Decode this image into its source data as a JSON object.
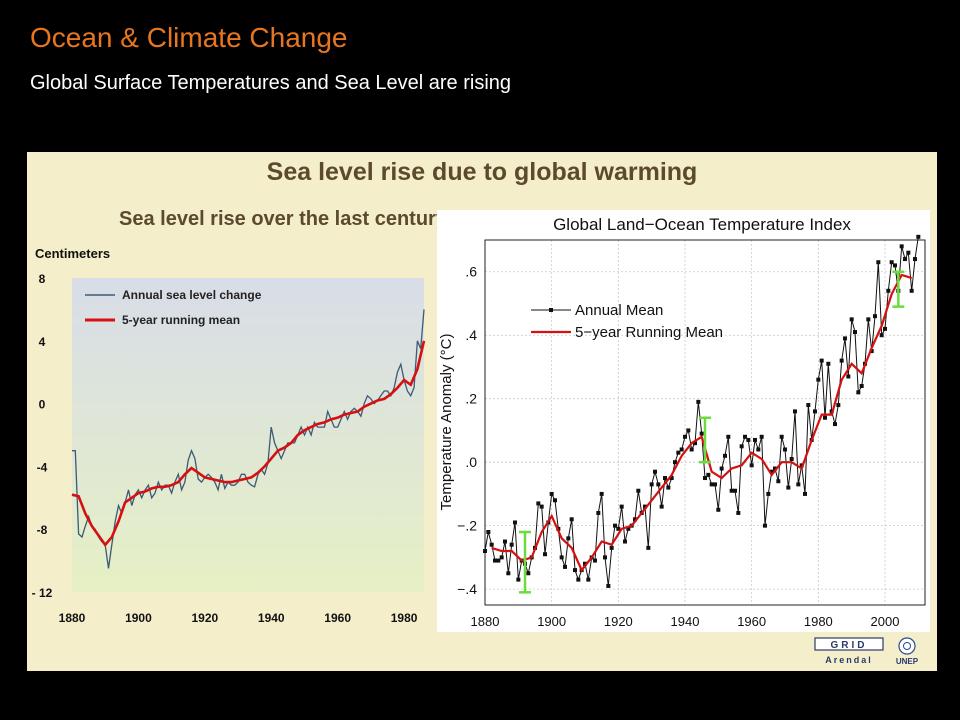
{
  "slide": {
    "title": "Ocean & Climate Change",
    "subtitle": "Global Surface Temperatures and Sea Level are rising"
  },
  "figure": {
    "title": "Sea level rise due to global warming",
    "logos": [
      "GRID Arendal",
      "UNEP"
    ]
  },
  "colors": {
    "slide_title": "#e8761e",
    "figure_bg": "#f5eecb",
    "sea_annual": "#3b5a78",
    "running_mean": "#d41010",
    "temp_annual": "#111111",
    "highlight_bars": "#6cdc3c"
  },
  "chart_data": [
    {
      "type": "line",
      "title": "Sea level rise over the last century",
      "ylabel": "Centimeters",
      "xlabel": "",
      "x_ticks": [
        1880,
        1900,
        1920,
        1940,
        1960,
        1980
      ],
      "y_ticks": [
        8,
        4,
        0,
        -4,
        -8,
        -12
      ],
      "y_tick_labels": [
        "8",
        "4",
        "0",
        "-4",
        "-8",
        "- 12"
      ],
      "xlim": [
        1880,
        1986
      ],
      "ylim": [
        -12,
        8
      ],
      "grid": false,
      "legend": "top-left",
      "series": [
        {
          "name": "Annual sea level change",
          "x": [
            1880,
            1881,
            1882,
            1883,
            1884,
            1885,
            1886,
            1887,
            1888,
            1889,
            1890,
            1891,
            1892,
            1893,
            1894,
            1895,
            1896,
            1897,
            1898,
            1899,
            1900,
            1901,
            1902,
            1903,
            1904,
            1905,
            1906,
            1907,
            1908,
            1909,
            1910,
            1911,
            1912,
            1913,
            1914,
            1915,
            1916,
            1917,
            1918,
            1919,
            1920,
            1921,
            1922,
            1923,
            1924,
            1925,
            1926,
            1927,
            1928,
            1929,
            1930,
            1931,
            1932,
            1933,
            1934,
            1935,
            1936,
            1937,
            1938,
            1939,
            1940,
            1941,
            1942,
            1943,
            1944,
            1945,
            1946,
            1947,
            1948,
            1949,
            1950,
            1951,
            1952,
            1953,
            1954,
            1955,
            1956,
            1957,
            1958,
            1959,
            1960,
            1961,
            1962,
            1963,
            1964,
            1965,
            1966,
            1967,
            1968,
            1969,
            1970,
            1971,
            1972,
            1973,
            1974,
            1975,
            1976,
            1977,
            1978,
            1979,
            1980,
            1981,
            1982,
            1983,
            1984,
            1985,
            1986
          ],
          "values": [
            -3,
            -3,
            -8.3,
            -8.5,
            -7.8,
            -7.2,
            -7.8,
            -8,
            -8.5,
            -8.8,
            -9,
            -10.5,
            -9,
            -7.5,
            -6.5,
            -7,
            -6.3,
            -5.5,
            -6.5,
            -5.8,
            -5.5,
            -6,
            -5.5,
            -5.2,
            -6,
            -5.7,
            -5,
            -5.5,
            -5.2,
            -5.2,
            -5.7,
            -5,
            -4.5,
            -5.5,
            -5,
            -3.6,
            -3,
            -3.5,
            -4.8,
            -5,
            -4.7,
            -4.5,
            -4.7,
            -5,
            -5.5,
            -4.5,
            -5.4,
            -5,
            -5.2,
            -5.2,
            -5,
            -4.5,
            -4.5,
            -5,
            -5.2,
            -5.3,
            -4.5,
            -4.2,
            -4.5,
            -3.8,
            -1.5,
            -2.5,
            -3,
            -3.5,
            -3,
            -2.5,
            -2.5,
            -2.5,
            -2,
            -1.5,
            -2,
            -1.5,
            -2,
            -1.2,
            -1.5,
            -1.5,
            -1.5,
            -0.5,
            -1,
            -1.5,
            -1.5,
            -1,
            -0.5,
            -1,
            -0.5,
            -0.3,
            -0.5,
            -0.8,
            0,
            0.5,
            0.3,
            0,
            0.2,
            0.5,
            0.8,
            0.8,
            0.5,
            1,
            2,
            2.5,
            1.5,
            0.8,
            0.5,
            1,
            4,
            3.5,
            6
          ]
        },
        {
          "name": "5-year running mean",
          "x": [
            1880,
            1882,
            1884,
            1886,
            1888,
            1890,
            1892,
            1894,
            1896,
            1898,
            1900,
            1902,
            1904,
            1906,
            1908,
            1910,
            1912,
            1914,
            1916,
            1918,
            1920,
            1922,
            1924,
            1926,
            1928,
            1930,
            1932,
            1934,
            1936,
            1938,
            1940,
            1942,
            1944,
            1946,
            1948,
            1950,
            1952,
            1954,
            1956,
            1958,
            1960,
            1962,
            1964,
            1966,
            1968,
            1970,
            1972,
            1974,
            1976,
            1978,
            1980,
            1982,
            1984,
            1986
          ],
          "values": [
            -5.8,
            -5.9,
            -7,
            -7.8,
            -8.4,
            -9,
            -8.5,
            -7.5,
            -6.3,
            -6,
            -5.7,
            -5.6,
            -5.4,
            -5.3,
            -5.3,
            -5.2,
            -5,
            -4.5,
            -4.1,
            -4.4,
            -4.7,
            -4.8,
            -4.9,
            -5,
            -5,
            -4.9,
            -4.8,
            -4.7,
            -4.4,
            -4,
            -3.5,
            -3,
            -2.8,
            -2.5,
            -2,
            -1.7,
            -1.5,
            -1.3,
            -1.2,
            -1,
            -0.9,
            -0.7,
            -0.6,
            -0.5,
            -0.2,
            0,
            0.2,
            0.3,
            0.6,
            1,
            1.5,
            1.2,
            2.2,
            4
          ]
        }
      ]
    },
    {
      "type": "line",
      "title": "Global Land−Ocean Temperature Index",
      "ylabel": "Temperature Anomaly (°C)",
      "xlabel": "",
      "x_ticks": [
        1880,
        1900,
        1920,
        1940,
        1960,
        1980,
        2000
      ],
      "y_ticks": [
        0.6,
        0.4,
        0.2,
        0.0,
        -0.2,
        -0.4
      ],
      "y_tick_labels": [
        ".6",
        ".4",
        ".2",
        ".0",
        "−.2",
        "−.4"
      ],
      "xlim": [
        1880,
        2012
      ],
      "ylim": [
        -0.45,
        0.7
      ],
      "grid": true,
      "legend": "top-left",
      "series": [
        {
          "name": "Annual Mean",
          "x": [
            1880,
            1881,
            1882,
            1883,
            1884,
            1885,
            1886,
            1887,
            1888,
            1889,
            1890,
            1891,
            1892,
            1893,
            1894,
            1895,
            1896,
            1897,
            1898,
            1899,
            1900,
            1901,
            1902,
            1903,
            1904,
            1905,
            1906,
            1907,
            1908,
            1909,
            1910,
            1911,
            1912,
            1913,
            1914,
            1915,
            1916,
            1917,
            1918,
            1919,
            1920,
            1921,
            1922,
            1923,
            1924,
            1925,
            1926,
            1927,
            1928,
            1929,
            1930,
            1931,
            1932,
            1933,
            1934,
            1935,
            1936,
            1937,
            1938,
            1939,
            1940,
            1941,
            1942,
            1943,
            1944,
            1945,
            1946,
            1947,
            1948,
            1949,
            1950,
            1951,
            1952,
            1953,
            1954,
            1955,
            1956,
            1957,
            1958,
            1959,
            1960,
            1961,
            1962,
            1963,
            1964,
            1965,
            1966,
            1967,
            1968,
            1969,
            1970,
            1971,
            1972,
            1973,
            1974,
            1975,
            1976,
            1977,
            1978,
            1979,
            1980,
            1981,
            1982,
            1983,
            1984,
            1985,
            1986,
            1987,
            1988,
            1989,
            1990,
            1991,
            1992,
            1993,
            1994,
            1995,
            1996,
            1997,
            1998,
            1999,
            2000,
            2001,
            2002,
            2003,
            2004,
            2005,
            2006,
            2007,
            2008,
            2009,
            2010
          ],
          "values": [
            -0.28,
            -0.22,
            -0.26,
            -0.31,
            -0.31,
            -0.3,
            -0.25,
            -0.35,
            -0.26,
            -0.19,
            -0.37,
            -0.31,
            -0.32,
            -0.35,
            -0.3,
            -0.27,
            -0.13,
            -0.14,
            -0.29,
            -0.19,
            -0.1,
            -0.12,
            -0.21,
            -0.3,
            -0.33,
            -0.24,
            -0.18,
            -0.34,
            -0.37,
            -0.34,
            -0.32,
            -0.37,
            -0.3,
            -0.31,
            -0.16,
            -0.1,
            -0.3,
            -0.39,
            -0.27,
            -0.2,
            -0.21,
            -0.14,
            -0.25,
            -0.21,
            -0.2,
            -0.18,
            -0.09,
            -0.16,
            -0.14,
            -0.27,
            -0.07,
            -0.03,
            -0.07,
            -0.14,
            -0.05,
            -0.08,
            -0.05,
            0.0,
            0.03,
            0.04,
            0.08,
            0.1,
            0.04,
            0.06,
            0.19,
            0.09,
            -0.05,
            -0.04,
            -0.07,
            -0.07,
            -0.15,
            -0.02,
            0.02,
            0.08,
            -0.09,
            -0.09,
            -0.16,
            0.05,
            0.08,
            0.07,
            -0.01,
            0.07,
            0.04,
            0.08,
            -0.2,
            -0.1,
            -0.03,
            -0.02,
            -0.06,
            0.08,
            0.04,
            -0.08,
            0.01,
            0.16,
            -0.07,
            -0.01,
            -0.1,
            0.18,
            0.07,
            0.16,
            0.26,
            0.32,
            0.14,
            0.31,
            0.16,
            0.12,
            0.18,
            0.32,
            0.39,
            0.27,
            0.45,
            0.41,
            0.22,
            0.24,
            0.31,
            0.45,
            0.35,
            0.46,
            0.63,
            0.4,
            0.42,
            0.54,
            0.63,
            0.62,
            0.54,
            0.68,
            0.64,
            0.66,
            0.54,
            0.64,
            0.71
          ]
        },
        {
          "name": "5−year Running Mean",
          "x": [
            1882,
            1885,
            1888,
            1891,
            1894,
            1897,
            1900,
            1903,
            1906,
            1909,
            1912,
            1915,
            1918,
            1921,
            1924,
            1927,
            1930,
            1933,
            1936,
            1939,
            1942,
            1945,
            1948,
            1951,
            1954,
            1957,
            1960,
            1963,
            1966,
            1969,
            1972,
            1975,
            1978,
            1981,
            1984,
            1987,
            1990,
            1993,
            1996,
            1999,
            2002,
            2005,
            2008
          ],
          "values": [
            -0.27,
            -0.28,
            -0.28,
            -0.31,
            -0.3,
            -0.22,
            -0.17,
            -0.24,
            -0.27,
            -0.34,
            -0.3,
            -0.25,
            -0.26,
            -0.21,
            -0.2,
            -0.16,
            -0.12,
            -0.08,
            -0.04,
            0.02,
            0.06,
            0.08,
            -0.03,
            -0.05,
            -0.02,
            -0.01,
            0.03,
            0.01,
            -0.04,
            0.0,
            0.0,
            -0.02,
            0.07,
            0.15,
            0.15,
            0.26,
            0.31,
            0.28,
            0.36,
            0.43,
            0.53,
            0.59,
            0.58
          ]
        }
      ]
    }
  ]
}
